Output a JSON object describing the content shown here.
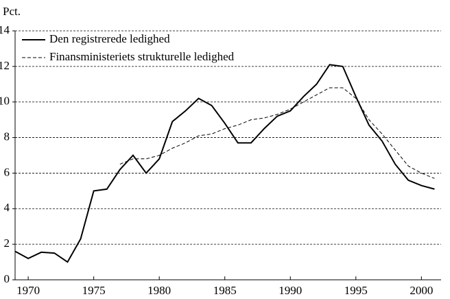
{
  "chart_data": {
    "type": "line",
    "y_unit_label": "Pct.",
    "x": [
      1969,
      1970,
      1971,
      1972,
      1973,
      1974,
      1975,
      1976,
      1977,
      1978,
      1979,
      1980,
      1981,
      1982,
      1983,
      1984,
      1985,
      1986,
      1987,
      1988,
      1989,
      1990,
      1991,
      1992,
      1993,
      1994,
      1995,
      1996,
      1997,
      1998,
      1999,
      2000,
      2001
    ],
    "series": [
      {
        "name": "Den registrerede ledighed",
        "color": "#000000",
        "dash": "solid",
        "values": [
          1.6,
          1.2,
          1.55,
          1.5,
          1.0,
          2.3,
          5.0,
          5.1,
          6.2,
          7.0,
          6.0,
          6.8,
          8.9,
          9.5,
          10.2,
          9.8,
          8.8,
          7.7,
          7.7,
          8.5,
          9.2,
          9.5,
          10.3,
          11.0,
          12.1,
          12.0,
          10.3,
          8.7,
          7.8,
          6.5,
          5.6,
          5.3,
          5.1
        ]
      },
      {
        "name": "Finansministeriets strukturelle ledighed",
        "color": "#000000",
        "dash": "dashed",
        "values": [
          null,
          null,
          null,
          null,
          null,
          null,
          null,
          null,
          6.5,
          6.8,
          6.8,
          7.0,
          7.4,
          7.7,
          8.1,
          8.2,
          8.5,
          8.7,
          9.0,
          9.1,
          9.3,
          9.6,
          10.0,
          10.4,
          10.8,
          10.8,
          10.2,
          9.0,
          8.2,
          7.3,
          6.4,
          6.0,
          5.7
        ]
      }
    ],
    "xlim": [
      1969,
      2001.5
    ],
    "xticks": [
      1970,
      1975,
      1980,
      1985,
      1990,
      1995,
      2000
    ],
    "ylim": [
      0,
      14
    ],
    "yticks": [
      0,
      2,
      4,
      6,
      8,
      10,
      12,
      14
    ],
    "grid": true,
    "legend": "top-left"
  }
}
